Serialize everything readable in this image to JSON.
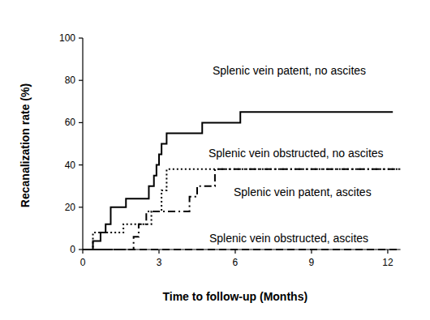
{
  "chart_data": {
    "type": "line",
    "x_label": "Time to follow-up (Months)",
    "y_label": "Recanalization rate (%)",
    "xlim": [
      0,
      12.5
    ],
    "xticks": [
      0,
      3,
      6,
      9,
      12
    ],
    "ylim": [
      0,
      100
    ],
    "yticks": [
      0,
      20,
      40,
      60,
      80,
      100
    ],
    "grid": false,
    "series": [
      {
        "name": "Splenic vein patent, no ascites",
        "color": "#000000",
        "line_style": "solid",
        "x": [
          0,
          0.4,
          0.7,
          0.9,
          1.1,
          1.7,
          2.6,
          2.8,
          2.9,
          3.0,
          3.1,
          3.3,
          4.7,
          6.2,
          12.2
        ],
        "values": [
          0,
          4,
          8,
          12,
          20,
          24,
          30,
          35,
          40,
          45,
          50,
          55,
          60,
          65,
          65
        ]
      },
      {
        "name": "Splenic vein obstructed, no ascites",
        "color": "#000000",
        "line_style": "dotted",
        "x": [
          0,
          0.4,
          1.6,
          2.7,
          3.1,
          3.3,
          12.5
        ],
        "values": [
          0,
          8,
          12,
          18,
          28,
          38,
          38
        ]
      },
      {
        "name": "Splenic vein patent, ascites",
        "color": "#000000",
        "line_style": "dashdot",
        "x": [
          0,
          2.0,
          2.2,
          2.5,
          4.2,
          4.5,
          5.2,
          12.5
        ],
        "values": [
          0,
          6,
          12,
          18,
          25,
          30,
          38,
          38
        ]
      },
      {
        "name": "Splenic vein obstructed, ascites",
        "color": "#000000",
        "line_style": "dashed",
        "x": [
          0,
          12.5
        ],
        "values": [
          0,
          0
        ]
      }
    ]
  }
}
